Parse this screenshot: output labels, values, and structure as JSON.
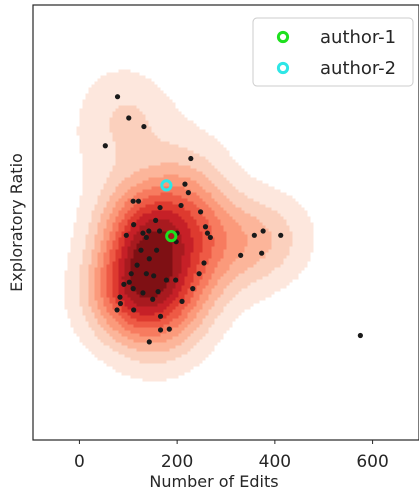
{
  "chart_data": {
    "type": "scatter",
    "title": "",
    "xlabel": "Number of Edits",
    "ylabel": "Exploratory Ratio",
    "xlim": [
      -95,
      695
    ],
    "ylim": [
      -0.02,
      1.0
    ],
    "x_ticks": [
      0,
      200,
      400,
      600
    ],
    "x_tick_labels": [
      "0",
      "200",
      "400",
      "600"
    ],
    "y_ticks": [],
    "grid": false,
    "legend": {
      "position": "top-right"
    },
    "density": {
      "kind": "kde",
      "colors": [
        "#fde7dd",
        "#fbd0bd",
        "#fcb59a",
        "#fb9a7b",
        "#f77b5f",
        "#ee5a45",
        "#de3a2f",
        "#c62027",
        "#a81a1f",
        "#7f1014"
      ],
      "fill_opacity": 0.85
    },
    "points": {
      "color": "#1a1a1a",
      "x": [
        78,
        101,
        132,
        53,
        228,
        110,
        121,
        165,
        208,
        223,
        216,
        248,
        258,
        111,
        96,
        130,
        137,
        142,
        156,
        164,
        200,
        198,
        268,
        262,
        358,
        373,
        412,
        376,
        330,
        255,
        245,
        126,
        143,
        158,
        106,
        102,
        118,
        137,
        152,
        91,
        77,
        83,
        110,
        130,
        150,
        166,
        232,
        210,
        178,
        197,
        161,
        166,
        84,
        111,
        143,
        184,
        575
      ],
      "y": [
        0.785,
        0.735,
        0.715,
        0.67,
        0.64,
        0.54,
        0.54,
        0.525,
        0.53,
        0.56,
        0.58,
        0.515,
        0.48,
        0.485,
        0.46,
        0.465,
        0.455,
        0.47,
        0.495,
        0.47,
        0.465,
        0.445,
        0.455,
        0.465,
        0.46,
        0.418,
        0.46,
        0.47,
        0.413,
        0.395,
        0.37,
        0.425,
        0.405,
        0.425,
        0.37,
        0.35,
        0.39,
        0.37,
        0.365,
        0.345,
        0.285,
        0.315,
        0.335,
        0.325,
        0.31,
        0.27,
        0.335,
        0.305,
        0.355,
        0.355,
        0.328,
        0.238,
        0.3,
        0.285,
        0.21,
        0.24,
        0.225
      ]
    },
    "series": [
      {
        "name": "author-1",
        "color": "#1ee01e",
        "x": [
          188
        ],
        "y": [
          0.458
        ]
      },
      {
        "name": "author-2",
        "color": "#2ee6e6",
        "x": [
          178
        ],
        "y": [
          0.577
        ]
      }
    ]
  }
}
